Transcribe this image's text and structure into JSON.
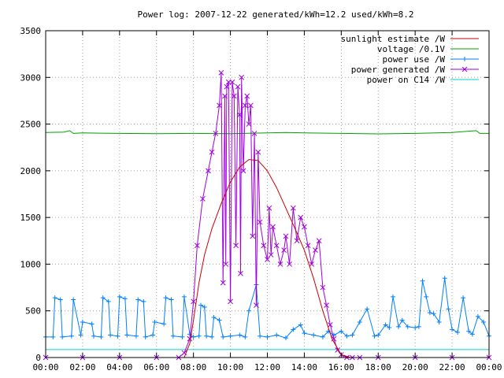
{
  "chart_data": {
    "type": "line",
    "title": "Power log: 2007-12-22 generated/kWh=12.2 used/kWh=8.2",
    "xlabel": "",
    "ylabel": "",
    "x_ticks": [
      "00:00",
      "02:00",
      "04:00",
      "06:00",
      "08:00",
      "10:00",
      "12:00",
      "14:00",
      "16:00",
      "18:00",
      "20:00",
      "22:00",
      "00:00"
    ],
    "xlim": [
      0,
      24
    ],
    "ylim": [
      0,
      3500
    ],
    "y_ticks": [
      0,
      500,
      1000,
      1500,
      2000,
      2500,
      3000,
      3500
    ],
    "grid": true,
    "legend_position": "top-right",
    "series": [
      {
        "name": "sunlight estimate /W",
        "color": "#cc0000",
        "marker": "none",
        "x": [
          7.5,
          7.8,
          8.0,
          8.3,
          8.6,
          9.0,
          9.5,
          10.0,
          10.5,
          11.0,
          11.5,
          12.0,
          12.5,
          13.0,
          13.5,
          14.0,
          14.5,
          15.0,
          15.5,
          16.0,
          16.5
        ],
        "y": [
          0,
          150,
          400,
          800,
          1100,
          1380,
          1650,
          1880,
          2040,
          2120,
          2110,
          2000,
          1820,
          1600,
          1380,
          1150,
          850,
          500,
          200,
          30,
          0
        ]
      },
      {
        "name": "voltage /0.1V",
        "color": "#00a000",
        "marker": "none",
        "x": [
          0,
          1.0,
          1.3,
          1.5,
          2,
          4,
          6,
          8,
          10,
          12,
          13,
          14,
          16,
          18,
          20,
          22,
          23.3,
          23.5,
          24
        ],
        "y": [
          2410,
          2415,
          2430,
          2400,
          2405,
          2400,
          2398,
          2400,
          2398,
          2405,
          2410,
          2405,
          2400,
          2395,
          2400,
          2410,
          2430,
          2400,
          2400
        ]
      },
      {
        "name": "power use /W",
        "color": "#0080ff",
        "marker": "plus",
        "x": [
          0,
          0.4,
          0.5,
          0.8,
          0.9,
          1.4,
          1.5,
          1.9,
          2.0,
          2.5,
          2.6,
          3.0,
          3.1,
          3.4,
          3.5,
          3.9,
          4.0,
          4.3,
          4.4,
          4.9,
          5.0,
          5.3,
          5.4,
          5.8,
          5.9,
          6.4,
          6.5,
          6.8,
          6.9,
          7.4,
          7.5,
          7.8,
          8.0,
          8.3,
          8.4,
          8.6,
          8.7,
          9.0,
          9.1,
          9.4,
          9.6,
          10.0,
          10.5,
          10.8,
          11.0,
          11.4,
          11.6,
          12.0,
          12.5,
          13.0,
          13.4,
          13.8,
          14.0,
          14.5,
          15.0,
          15.3,
          15.6,
          16.0,
          16.3,
          16.6,
          17.0,
          17.4,
          17.8,
          18.0,
          18.4,
          18.6,
          18.8,
          19.1,
          19.3,
          19.6,
          20.0,
          20.2,
          20.4,
          20.6,
          20.8,
          21.0,
          21.3,
          21.6,
          21.8,
          22.0,
          22.3,
          22.6,
          22.9,
          23.1,
          23.4,
          23.7,
          24.0
        ],
        "y": [
          220,
          220,
          640,
          620,
          220,
          230,
          620,
          240,
          380,
          360,
          230,
          220,
          640,
          600,
          240,
          230,
          650,
          630,
          240,
          230,
          620,
          600,
          220,
          240,
          380,
          360,
          640,
          620,
          230,
          220,
          650,
          250,
          220,
          230,
          560,
          540,
          230,
          220,
          430,
          400,
          220,
          230,
          240,
          220,
          500,
          780,
          230,
          220,
          240,
          210,
          300,
          350,
          260,
          240,
          220,
          280,
          240,
          280,
          230,
          240,
          380,
          520,
          230,
          240,
          350,
          320,
          650,
          330,
          400,
          330,
          320,
          330,
          820,
          650,
          480,
          470,
          380,
          850,
          520,
          300,
          270,
          640,
          280,
          250,
          440,
          380,
          230
        ]
      },
      {
        "name": "power generated /W",
        "color": "#a000e0",
        "marker": "cross",
        "x": [
          0,
          2,
          4,
          6,
          7.2,
          7.5,
          7.8,
          8.0,
          8.2,
          8.5,
          8.8,
          9.0,
          9.2,
          9.4,
          9.5,
          9.6,
          9.7,
          9.75,
          9.8,
          9.9,
          10.0,
          10.1,
          10.2,
          10.3,
          10.4,
          10.5,
          10.55,
          10.6,
          10.7,
          10.8,
          10.9,
          11.0,
          11.1,
          11.2,
          11.3,
          11.4,
          11.5,
          11.6,
          11.8,
          12.0,
          12.1,
          12.2,
          12.3,
          12.5,
          12.7,
          12.9,
          13.0,
          13.2,
          13.4,
          13.6,
          13.8,
          14.0,
          14.2,
          14.4,
          14.6,
          14.8,
          15.0,
          15.2,
          15.4,
          15.6,
          15.8,
          16.0,
          16.3,
          16.6,
          17.0,
          18,
          20,
          22,
          24
        ],
        "y": [
          0,
          0,
          0,
          0,
          0,
          50,
          200,
          600,
          1200,
          1700,
          2000,
          2200,
          2400,
          2700,
          3050,
          800,
          2800,
          1000,
          2900,
          2950,
          600,
          2950,
          2800,
          1200,
          2900,
          2600,
          900,
          3000,
          2000,
          2700,
          2800,
          2500,
          2700,
          1300,
          2400,
          560,
          2200,
          1450,
          1200,
          1050,
          1600,
          1100,
          1400,
          1200,
          1000,
          1150,
          1300,
          1000,
          1600,
          1250,
          1500,
          1400,
          1200,
          1000,
          1150,
          1250,
          750,
          560,
          350,
          200,
          80,
          30,
          0,
          0,
          0,
          0,
          0,
          0,
          0
        ]
      },
      {
        "name": "power on C14 /W",
        "color": "#00d0d0",
        "marker": "none",
        "x": [
          0,
          24
        ],
        "y": [
          85,
          85
        ]
      }
    ]
  }
}
